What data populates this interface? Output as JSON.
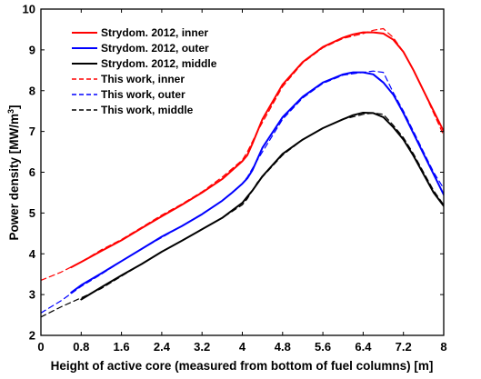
{
  "chart_data": {
    "type": "line",
    "xlabel": "Height of active core (measured from bottom of fuel columns) [m]",
    "ylabel_prefix": "Power density [MW/m",
    "ylabel_sup": "3",
    "ylabel_suffix": "]",
    "xlim": [
      0,
      8
    ],
    "ylim": [
      2,
      10
    ],
    "x_ticks": [
      0,
      0.8,
      1.6,
      2.4,
      3.2,
      4,
      4.8,
      5.6,
      6.4,
      7.2,
      8
    ],
    "x_tick_labels": [
      "0",
      "0.8",
      "1.6",
      "2.4",
      "3.2",
      "4",
      "4.8",
      "5.6",
      "6.4",
      "7.2",
      "8"
    ],
    "y_ticks": [
      2,
      3,
      4,
      5,
      6,
      7,
      8,
      9,
      10
    ],
    "y_tick_labels": [
      "2",
      "3",
      "4",
      "5",
      "6",
      "7",
      "8",
      "9",
      "10"
    ],
    "grid": false,
    "legend_position": "top-left",
    "series": [
      {
        "name": "Strydom. 2012, inner",
        "color": "#ff0000",
        "style": "solid",
        "x": [
          0.6,
          0.8,
          1.2,
          1.6,
          2.0,
          2.4,
          2.8,
          3.2,
          3.6,
          4.0,
          4.1,
          4.2,
          4.4,
          4.8,
          5.2,
          5.6,
          6.0,
          6.2,
          6.4,
          6.6,
          6.8,
          7.0,
          7.2,
          7.4,
          7.6,
          7.8,
          8.0
        ],
        "y": [
          3.67,
          3.8,
          4.07,
          4.33,
          4.63,
          4.92,
          5.2,
          5.5,
          5.83,
          6.27,
          6.42,
          6.7,
          7.3,
          8.15,
          8.7,
          9.07,
          9.3,
          9.38,
          9.43,
          9.43,
          9.4,
          9.25,
          8.95,
          8.5,
          8.0,
          7.5,
          7.0
        ]
      },
      {
        "name": "Strydom. 2012, outer",
        "color": "#0000ff",
        "style": "solid",
        "x": [
          0.6,
          0.8,
          1.2,
          1.6,
          2.0,
          2.4,
          2.8,
          3.2,
          3.6,
          3.8,
          4.0,
          4.1,
          4.2,
          4.4,
          4.8,
          5.2,
          5.6,
          6.0,
          6.2,
          6.4,
          6.6,
          6.8,
          7.0,
          7.2,
          7.4,
          7.6,
          7.8,
          8.0
        ],
        "y": [
          3.05,
          3.23,
          3.52,
          3.82,
          4.12,
          4.42,
          4.68,
          4.97,
          5.3,
          5.5,
          5.72,
          5.85,
          6.05,
          6.6,
          7.35,
          7.85,
          8.2,
          8.4,
          8.45,
          8.45,
          8.4,
          8.2,
          7.9,
          7.45,
          6.95,
          6.45,
          5.95,
          5.45
        ]
      },
      {
        "name": "Strydom. 2012, middle",
        "color": "#000000",
        "style": "solid",
        "x": [
          0.8,
          1.2,
          1.6,
          2.0,
          2.4,
          2.8,
          3.2,
          3.6,
          4.0,
          4.1,
          4.2,
          4.4,
          4.8,
          5.2,
          5.6,
          6.0,
          6.2,
          6.4,
          6.6,
          6.8,
          7.0,
          7.2,
          7.4,
          7.6,
          7.8,
          8.0
        ],
        "y": [
          2.88,
          3.18,
          3.47,
          3.75,
          4.05,
          4.32,
          4.6,
          4.88,
          5.25,
          5.4,
          5.55,
          5.9,
          6.45,
          6.8,
          7.08,
          7.3,
          7.4,
          7.46,
          7.45,
          7.35,
          7.1,
          6.8,
          6.4,
          5.95,
          5.5,
          5.17
        ]
      },
      {
        "name": "This work, inner",
        "color": "#ff0000",
        "style": "dashed",
        "x": [
          0.0,
          0.4,
          0.8,
          1.2,
          1.6,
          2.0,
          2.4,
          2.8,
          3.2,
          3.6,
          4.0,
          4.1,
          4.3,
          4.8,
          5.2,
          5.6,
          6.0,
          6.4,
          6.6,
          6.8,
          7.0,
          7.2,
          7.4,
          7.6,
          7.8,
          8.0
        ],
        "y": [
          3.35,
          3.55,
          3.8,
          4.1,
          4.35,
          4.65,
          4.95,
          5.22,
          5.52,
          5.88,
          6.3,
          6.5,
          7.0,
          8.1,
          8.68,
          9.05,
          9.28,
          9.4,
          9.48,
          9.52,
          9.3,
          8.95,
          8.5,
          8.0,
          7.45,
          6.9
        ]
      },
      {
        "name": "This work, outer",
        "color": "#0000ff",
        "style": "dashed",
        "x": [
          0.0,
          0.4,
          0.8,
          1.2,
          1.6,
          2.0,
          2.4,
          2.8,
          3.2,
          3.6,
          4.0,
          4.1,
          4.3,
          4.8,
          5.2,
          5.6,
          6.0,
          6.4,
          6.6,
          6.8,
          7.0,
          7.2,
          7.4,
          7.6,
          7.8,
          8.0
        ],
        "y": [
          2.55,
          2.85,
          3.2,
          3.5,
          3.82,
          4.12,
          4.4,
          4.68,
          4.98,
          5.3,
          5.72,
          5.88,
          6.3,
          7.3,
          7.82,
          8.18,
          8.38,
          8.45,
          8.48,
          8.45,
          7.95,
          7.5,
          7.0,
          6.5,
          6.0,
          5.6
        ]
      },
      {
        "name": "This work, middle",
        "color": "#000000",
        "style": "dashed",
        "x": [
          0.0,
          0.4,
          0.8,
          1.2,
          1.6,
          2.0,
          2.4,
          2.8,
          3.2,
          3.6,
          4.0,
          4.1,
          4.3,
          4.8,
          5.2,
          5.6,
          6.0,
          6.4,
          6.6,
          6.8,
          7.0,
          7.2,
          7.4,
          7.6,
          7.8,
          8.0
        ],
        "y": [
          2.45,
          2.7,
          2.92,
          3.15,
          3.45,
          3.75,
          4.05,
          4.32,
          4.6,
          4.88,
          5.2,
          5.35,
          5.75,
          6.42,
          6.8,
          7.08,
          7.3,
          7.42,
          7.45,
          7.42,
          7.15,
          6.85,
          6.45,
          6.0,
          5.55,
          5.2
        ]
      }
    ]
  }
}
